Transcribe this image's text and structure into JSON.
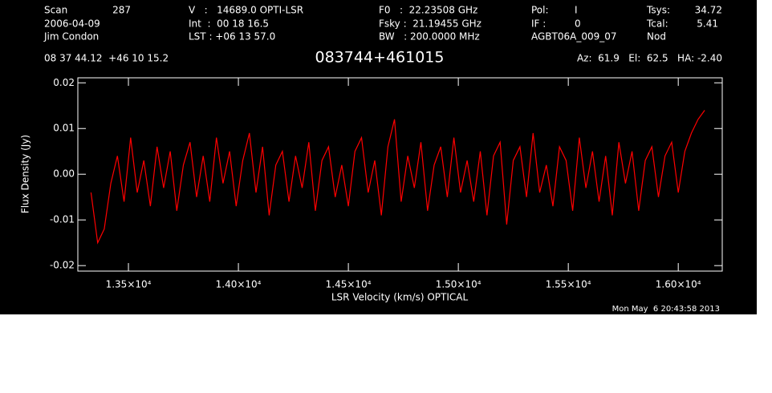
{
  "header": {
    "items": [
      "Scan",
      "287",
      "2006-04-09",
      "Jim Condon",
      "V   :   14689.0 OPTI-LSR",
      "Int  :  00 18 16.5",
      "LST : +06 13 57.0",
      "F0   :  22.23508 GHz",
      "Fsky :  21.19455 GHz",
      "BW   : 200.0000 MHz",
      "Pol:",
      "I",
      "IF :",
      "0",
      "AGBT06A_009_07",
      "Tsys:",
      "34.72",
      "Tcal:",
      "5.41",
      "Nod",
      "08 37 44.12  +46 10 15.2",
      "Az:  61.9   El:  62.5   HA: -2.40",
      "Mon May  6 20:43:58 2013"
    ]
  },
  "chart_data": {
    "type": "line",
    "title": "083744+461015",
    "x_label": "LSR Velocity (km/s) OPTICAL",
    "y_label": "Flux Density (Jy)",
    "color": "#ff0000",
    "xlim": [
      13270,
      16200
    ],
    "ylim": [
      -0.0212,
      0.0211
    ],
    "xticks": [
      {
        "value": 13500,
        "label": "1.35×10⁴"
      },
      {
        "value": 14000,
        "label": "1.40×10⁴"
      },
      {
        "value": 14500,
        "label": "1.45×10⁴"
      },
      {
        "value": 15000,
        "label": "1.50×10⁴"
      },
      {
        "value": 15500,
        "label": "1.55×10⁴"
      },
      {
        "value": 16000,
        "label": "1.60×10⁴"
      }
    ],
    "yticks": [
      0.02,
      0.01,
      {
        "value": 0,
        "label": "0.00"
      },
      -0.01,
      -0.02
    ],
    "x": [
      13330,
      13360,
      13390,
      13420,
      13450,
      13480,
      13510,
      13540,
      13570,
      13600,
      13630,
      13660,
      13690,
      13720,
      13750,
      13780,
      13810,
      13840,
      13870,
      13900,
      13930,
      13960,
      13990,
      14020,
      14050,
      14080,
      14110,
      14140,
      14170,
      14200,
      14230,
      14260,
      14290,
      14320,
      14350,
      14380,
      14410,
      14440,
      14470,
      14500,
      14530,
      14560,
      14590,
      14620,
      14650,
      14680,
      14710,
      14740,
      14770,
      14800,
      14830,
      14860,
      14890,
      14920,
      14950,
      14980,
      15010,
      15040,
      15070,
      15100,
      15130,
      15160,
      15190,
      15220,
      15250,
      15280,
      15310,
      15340,
      15370,
      15400,
      15430,
      15460,
      15490,
      15520,
      15550,
      15580,
      15610,
      15640,
      15670,
      15700,
      15730,
      15760,
      15790,
      15820,
      15850,
      15880,
      15910,
      15940,
      15970,
      16000,
      16030,
      16060,
      16090,
      16120
    ],
    "values": [
      -0.004,
      -0.015,
      -0.012,
      -0.002,
      0.004,
      -0.006,
      0.008,
      -0.004,
      0.003,
      -0.007,
      0.006,
      -0.003,
      0.005,
      -0.008,
      0.002,
      0.007,
      -0.005,
      0.004,
      -0.006,
      0.008,
      -0.002,
      0.005,
      -0.007,
      0.003,
      0.009,
      -0.004,
      0.006,
      -0.009,
      0.002,
      0.005,
      -0.006,
      0.004,
      -0.003,
      0.007,
      -0.008,
      0.003,
      0.006,
      -0.005,
      0.002,
      -0.007,
      0.005,
      0.008,
      -0.004,
      0.003,
      -0.009,
      0.006,
      0.012,
      -0.006,
      0.004,
      -0.003,
      0.007,
      -0.008,
      0.002,
      0.006,
      -0.005,
      0.008,
      -0.004,
      0.003,
      -0.006,
      0.005,
      -0.009,
      0.004,
      0.007,
      -0.011,
      0.003,
      0.006,
      -0.005,
      0.009,
      -0.004,
      0.002,
      -0.007,
      0.006,
      0.003,
      -0.008,
      0.008,
      -0.003,
      0.005,
      -0.006,
      0.004,
      -0.009,
      0.007,
      -0.002,
      0.005,
      -0.008,
      0.003,
      0.006,
      -0.005,
      0.004,
      0.007,
      -0.004,
      0.005,
      0.009,
      0.012,
      0.014
    ]
  }
}
